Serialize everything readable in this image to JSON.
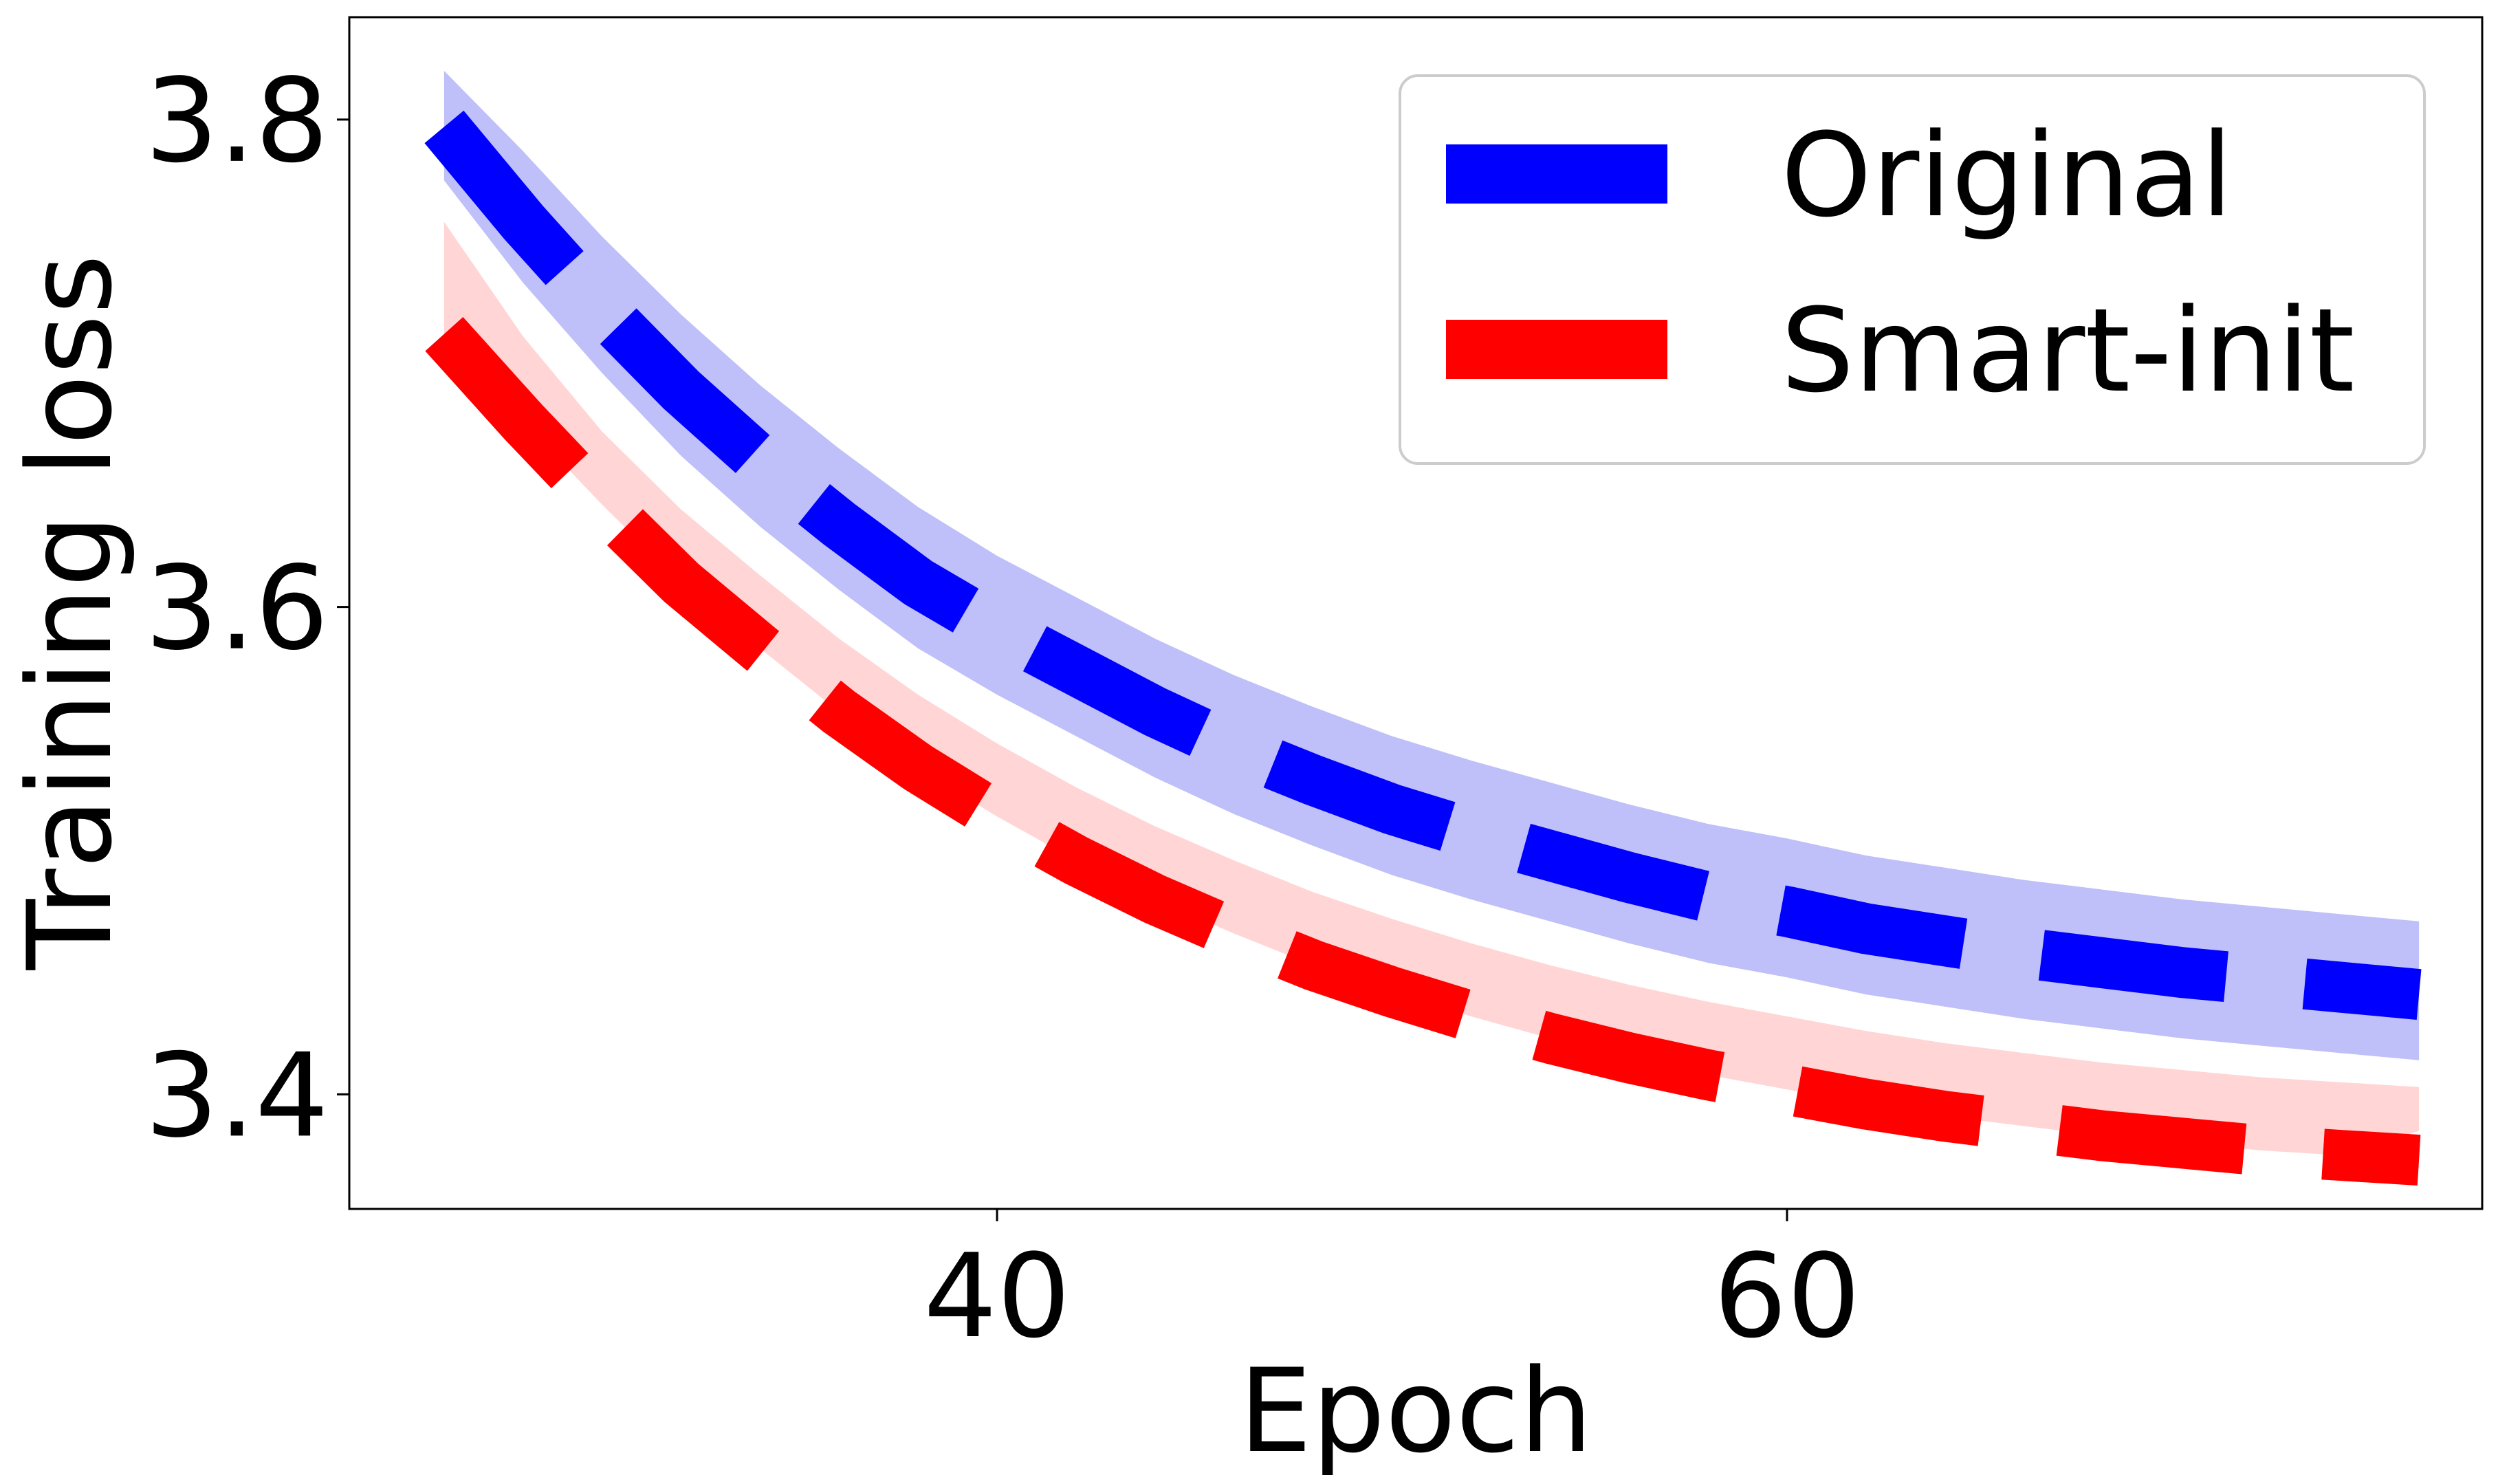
{
  "chart_data": {
    "type": "line",
    "title": "",
    "xlabel": "Epoch",
    "ylabel": "Training loss",
    "xlim": [
      23.6,
      77.6
    ],
    "ylim": [
      3.353,
      3.842
    ],
    "xticks": [
      40,
      60
    ],
    "xtick_labels": [
      "40",
      "60"
    ],
    "yticks": [
      3.4,
      3.6,
      3.8
    ],
    "ytick_labels": [
      "3.4",
      "3.6",
      "3.8"
    ],
    "grid": false,
    "legend_position": "top-right",
    "x": [
      26,
      28,
      30,
      32,
      34,
      36,
      38,
      40,
      42,
      44,
      46,
      48,
      50,
      52,
      54,
      56,
      58,
      60,
      62,
      64,
      66,
      68,
      70,
      72,
      74,
      76
    ],
    "series": [
      {
        "name": "Original",
        "color": "#0000ff",
        "band_color": "#bfbff9",
        "line_style": "dashed",
        "values": [
          3.797,
          3.758,
          3.722,
          3.689,
          3.66,
          3.634,
          3.61,
          3.591,
          3.574,
          3.557,
          3.542,
          3.529,
          3.517,
          3.507,
          3.498,
          3.489,
          3.481,
          3.475,
          3.468,
          3.463,
          3.458,
          3.454,
          3.45,
          3.447,
          3.444,
          3.441
        ],
        "band_upper": [
          3.82,
          3.787,
          3.752,
          3.72,
          3.691,
          3.665,
          3.641,
          3.621,
          3.604,
          3.587,
          3.572,
          3.559,
          3.547,
          3.537,
          3.528,
          3.519,
          3.511,
          3.505,
          3.498,
          3.493,
          3.488,
          3.484,
          3.48,
          3.477,
          3.474,
          3.471
        ],
        "band_lower": [
          3.775,
          3.733,
          3.696,
          3.662,
          3.633,
          3.607,
          3.583,
          3.564,
          3.547,
          3.53,
          3.515,
          3.502,
          3.49,
          3.48,
          3.471,
          3.462,
          3.454,
          3.448,
          3.441,
          3.436,
          3.431,
          3.427,
          3.423,
          3.42,
          3.417,
          3.414
        ]
      },
      {
        "name": "Smart-init",
        "color": "#ff0000",
        "band_color": "#ffbfbf",
        "line_style": "dashed",
        "values": [
          3.712,
          3.676,
          3.642,
          3.61,
          3.583,
          3.557,
          3.534,
          3.514,
          3.496,
          3.48,
          3.466,
          3.453,
          3.442,
          3.432,
          3.423,
          3.415,
          3.408,
          3.402,
          3.396,
          3.391,
          3.387,
          3.383,
          3.38,
          3.377,
          3.375,
          3.373
        ],
        "band_upper": [
          3.758,
          3.711,
          3.672,
          3.64,
          3.613,
          3.587,
          3.564,
          3.544,
          3.526,
          3.51,
          3.496,
          3.483,
          3.472,
          3.462,
          3.453,
          3.445,
          3.438,
          3.432,
          3.426,
          3.421,
          3.417,
          3.413,
          3.41,
          3.407,
          3.405,
          3.403
        ],
        "band_lower": [
          3.712,
          3.676,
          3.642,
          3.61,
          3.583,
          3.557,
          3.534,
          3.514,
          3.496,
          3.48,
          3.466,
          3.453,
          3.442,
          3.432,
          3.423,
          3.415,
          3.408,
          3.402,
          3.396,
          3.391,
          3.387,
          3.383,
          3.38,
          3.377,
          3.375,
          3.385
        ]
      }
    ]
  }
}
